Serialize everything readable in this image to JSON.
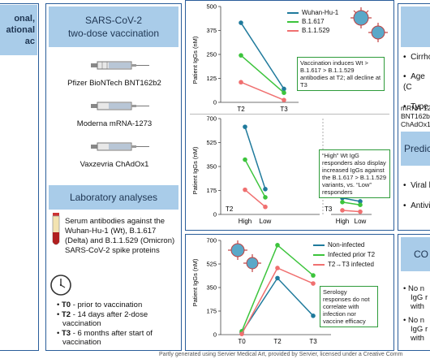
{
  "left_panel": {
    "title_lines": [
      "onal,",
      "ational",
      "ac"
    ]
  },
  "vaccination": {
    "header_line1": "SARS-CoV-2",
    "header_line2": "two-dose vaccination",
    "vaccines": [
      "Pfizer BioNTech BNT162b2",
      "Moderna mRNA-1273",
      "Vaxzevria ChAdOx1"
    ]
  },
  "lab": {
    "header": "Laboratory analyses",
    "description": "Serum antibodies against the Wuhan-Hu-1 (Wt), B.1.617 (Delta) and B.1.1.529 (Omicron) SARS-CoV-2 spike proteins",
    "timepoints": [
      {
        "code": "T0",
        "text": " - prior to vaccination"
      },
      {
        "code": "T2",
        "text": " - 14 days after 2-dose vaccination"
      },
      {
        "code": "T3",
        "text": " - 6 months after start of vaccination"
      }
    ]
  },
  "chart_data": [
    {
      "type": "line",
      "ylabel": "Patient IgGs (nM)",
      "categories": [
        "T2",
        "T3"
      ],
      "ylim": [
        0,
        500
      ],
      "yticks": [
        "0",
        "125",
        "250",
        "375",
        "500"
      ],
      "series": [
        {
          "name": "Wuhan-Hu-1",
          "color": "#1f7a9c",
          "values": [
            415,
            70
          ]
        },
        {
          "name": "B.1.617",
          "color": "#3cc43c",
          "values": [
            245,
            50
          ]
        },
        {
          "name": "B.1.1.529",
          "color": "#f07070",
          "values": [
            105,
            12
          ]
        }
      ],
      "annotation": "Vaccination induces Wt > B.1.617 > B.1.1.529 antibodies at T2; all decline at T3"
    },
    {
      "type": "line",
      "ylabel": "Patient IgGs (nM)",
      "groups": [
        "T2",
        "T3"
      ],
      "categories": [
        "High",
        "Low"
      ],
      "ylim": [
        0,
        700
      ],
      "yticks": [
        "0",
        "175",
        "350",
        "525",
        "700"
      ],
      "series": [
        {
          "name": "Wuhan-Hu-1",
          "color": "#1f7a9c",
          "T2": [
            640,
            185
          ],
          "T3": [
            120,
            95
          ]
        },
        {
          "name": "B.1.617",
          "color": "#3cc43c",
          "T2": [
            400,
            125
          ],
          "T3": [
            90,
            70
          ]
        },
        {
          "name": "B.1.1.529",
          "color": "#f07070",
          "T2": [
            180,
            55
          ],
          "T3": [
            30,
            20
          ]
        }
      ],
      "annotation": "“High” Wt IgG responders also display increased IgGs  against the B.1.617 > B.1.1.529 variants, vs. “Low” responders"
    },
    {
      "type": "line",
      "ylabel": "Patient IgGs (nM)",
      "categories": [
        "T0",
        "T2",
        "T3"
      ],
      "ylim": [
        0,
        700
      ],
      "yticks": [
        "0",
        "175",
        "350",
        "525",
        "700"
      ],
      "series": [
        {
          "name": "Non-infected",
          "color": "#1f7a9c",
          "values": [
            15,
            420,
            140
          ]
        },
        {
          "name": "Infected prior T2",
          "color": "#3cc43c",
          "values": [
            25,
            665,
            440
          ]
        },
        {
          "name": "T2→T3 infected",
          "color": "#f07070",
          "values": [
            5,
            495,
            380
          ]
        }
      ],
      "annotation": "Serology responses do not correlate with infection nor vaccine efficacy"
    }
  ],
  "right_panel": {
    "bullets1": [
      "Cirrho",
      "Age (C",
      "Type c"
    ],
    "vaccine_list": [
      "mRNA-12",
      "BNT162b2",
      "ChAdOx1"
    ],
    "header2": "Predic",
    "bullets2": [
      "Viral h",
      "Antivir"
    ],
    "header3": "CO",
    "bullets3": [
      [
        "No n",
        "IgG r",
        "with"
      ],
      [
        "No n",
        "IgG r",
        "with"
      ]
    ]
  },
  "footer": "Partly generated using Servier Medical Art, provided by Servier, licensed under a Creative Comm"
}
